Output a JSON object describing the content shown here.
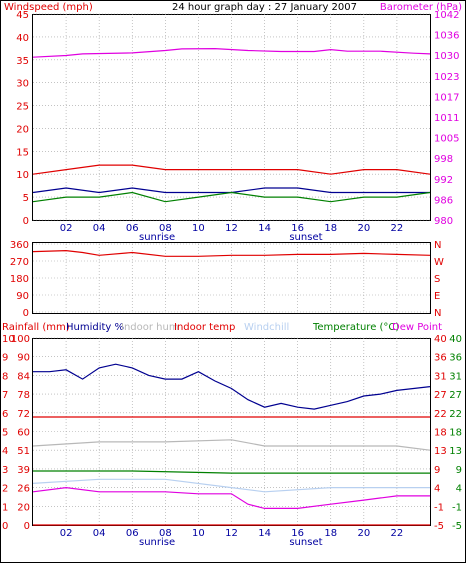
{
  "header": {
    "left_label": "Windspeed (mph)",
    "title": "24 hour graph day : 27 January 2007",
    "right_label": "Barometer (hPa)"
  },
  "bottom_header": {
    "rainfall": "Rainfall (mm)",
    "humidity": "Humidity %",
    "indoor_hum": "Indoor hum",
    "indoor_temp": "Indoor temp",
    "windchill": "Windchill",
    "temperature": "Temperature (°C)",
    "dewpoint": "Dew Point"
  },
  "x_ticks": [
    "02",
    "04",
    "06",
    "08",
    "10",
    "12",
    "14",
    "16",
    "18",
    "20",
    "22"
  ],
  "sun_labels": {
    "sunrise": "sunrise",
    "sunset": "sunset"
  },
  "colors": {
    "red": "#e00000",
    "magenta": "#e000e0",
    "navy": "#000090",
    "green": "#008000",
    "grey": "#b8b8b8",
    "lightblue": "#b8d0f0",
    "grid": "#a0a0a0",
    "blue_axis": "#0000a0"
  },
  "chart_data": [
    {
      "type": "line",
      "name": "wind-barometer",
      "y_left": {
        "label": "Windspeed (mph)",
        "ticks": [
          "0",
          "5",
          "10",
          "15",
          "20",
          "25",
          "30",
          "35",
          "40",
          "45"
        ],
        "range": [
          0,
          45
        ]
      },
      "y_right": {
        "label": "Barometer (hPa)",
        "ticks": [
          "980",
          "986",
          "992",
          "998",
          "1005",
          "1011",
          "1017",
          "1023",
          "1030",
          "1036",
          "1042"
        ],
        "range": [
          980,
          1042
        ]
      },
      "x_range_hours": [
        0,
        24
      ],
      "series": [
        {
          "color_key": "magenta",
          "axis": "right",
          "x": [
            0,
            2,
            3,
            6,
            8,
            9,
            11,
            13,
            15,
            17,
            18,
            19,
            21,
            23,
            24
          ],
          "y": [
            1029,
            1029.5,
            1030,
            1030.3,
            1031,
            1031.5,
            1031.6,
            1031,
            1030.7,
            1030.7,
            1031.3,
            1030.8,
            1030.8,
            1030.2,
            1030
          ]
        },
        {
          "color_key": "red",
          "axis": "left",
          "x": [
            0,
            2,
            4,
            6,
            8,
            10,
            12,
            14,
            16,
            18,
            20,
            22,
            24
          ],
          "y": [
            10,
            11,
            12,
            12,
            11,
            11,
            11,
            11,
            11,
            10,
            11,
            11,
            10
          ]
        },
        {
          "color_key": "navy",
          "axis": "left",
          "x": [
            0,
            2,
            4,
            6,
            8,
            10,
            12,
            14,
            16,
            18,
            20,
            22,
            24
          ],
          "y": [
            6,
            7,
            6,
            7,
            6,
            6,
            6,
            7,
            7,
            6,
            6,
            6,
            6
          ]
        },
        {
          "color_key": "green",
          "axis": "left",
          "x": [
            0,
            2,
            4,
            6,
            8,
            10,
            12,
            14,
            16,
            18,
            20,
            22,
            24
          ],
          "y": [
            4,
            5,
            5,
            6,
            4,
            5,
            6,
            5,
            5,
            4,
            5,
            5,
            6
          ]
        }
      ]
    },
    {
      "type": "line",
      "name": "wind-direction",
      "y_left": {
        "ticks": [
          "0",
          "90",
          "180",
          "270",
          "360"
        ],
        "range": [
          0,
          360
        ]
      },
      "y_right": {
        "ticks": [
          "N",
          "E",
          "S",
          "W",
          "N"
        ]
      },
      "x_range_hours": [
        0,
        24
      ],
      "series": [
        {
          "color_key": "red",
          "x": [
            0,
            2,
            3,
            4,
            6,
            8,
            10,
            12,
            14,
            16,
            18,
            20,
            22,
            24
          ],
          "y": [
            320,
            325,
            315,
            300,
            315,
            295,
            295,
            300,
            300,
            305,
            305,
            310,
            305,
            300
          ]
        }
      ]
    },
    {
      "type": "line",
      "name": "humidity-temperature",
      "y_left_outer": {
        "label": "Rainfall (mm)",
        "ticks": [
          "0",
          "1",
          "2",
          "3",
          "4",
          "5",
          "6",
          "7",
          "8",
          "9",
          "10"
        ],
        "range": [
          0,
          10
        ]
      },
      "y_left_inner": {
        "label": "Humidity %",
        "ticks": [
          "0",
          "20",
          "26",
          "39",
          "51",
          "60",
          "72",
          "78",
          "84",
          "90",
          "100"
        ],
        "range": [
          0,
          100
        ]
      },
      "y_right_inner": {
        "label": "Temperature (°C)",
        "ticks": [
          "-5",
          "-1",
          "4",
          "9",
          "13",
          "18",
          "22",
          "27",
          "31",
          "36",
          "40"
        ],
        "range": [
          -5,
          40
        ]
      },
      "y_right_outer": {
        "label": "Dew Point",
        "ticks": [
          "-5",
          "-1",
          "4",
          "9",
          "13",
          "18",
          "22",
          "27",
          "31",
          "36",
          "40"
        ],
        "range": [
          -5,
          40
        ]
      },
      "x_range_hours": [
        0,
        24
      ],
      "series": [
        {
          "color_key": "navy",
          "axis": "humidity",
          "x": [
            0,
            1,
            2,
            3,
            4,
            5,
            6,
            7,
            8,
            9,
            10,
            11,
            12,
            13,
            14,
            15,
            16,
            17,
            18,
            19,
            20,
            21,
            22,
            23,
            24
          ],
          "y": [
            82,
            82,
            83,
            78,
            84,
            86,
            84,
            80,
            78,
            78,
            82,
            77,
            73,
            67,
            63,
            65,
            63,
            62,
            64,
            66,
            69,
            70,
            72,
            73,
            74
          ]
        },
        {
          "color_key": "red",
          "axis": "temperature",
          "x": [
            0,
            24
          ],
          "y": [
            21,
            21
          ]
        },
        {
          "color_key": "grey",
          "axis": "temperature",
          "x": [
            0,
            4,
            8,
            12,
            14,
            18,
            22,
            24
          ],
          "y": [
            14,
            15,
            15,
            15.5,
            14,
            14,
            14,
            13
          ]
        },
        {
          "color_key": "green",
          "axis": "temperature",
          "x": [
            0,
            6,
            12,
            18,
            24
          ],
          "y": [
            8,
            8,
            7.5,
            7.5,
            7.5
          ]
        },
        {
          "color_key": "lightblue",
          "axis": "temperature",
          "x": [
            0,
            4,
            8,
            12,
            14,
            18,
            22,
            24
          ],
          "y": [
            5,
            6,
            6,
            4,
            3,
            4,
            4,
            4
          ]
        },
        {
          "color_key": "magenta",
          "axis": "temperature",
          "x": [
            0,
            2,
            4,
            6,
            8,
            10,
            12,
            13,
            14,
            16,
            18,
            20,
            22,
            24
          ],
          "y": [
            3,
            4,
            3,
            3,
            3,
            2.5,
            2.5,
            0,
            -1,
            -1,
            0,
            1,
            2,
            2
          ]
        },
        {
          "color_key": "red",
          "axis": "rain",
          "x": [
            0,
            24
          ],
          "y": [
            0,
            0
          ]
        }
      ]
    }
  ]
}
